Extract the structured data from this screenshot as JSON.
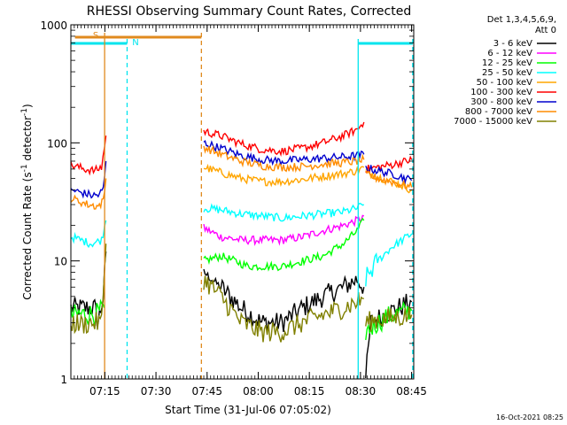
{
  "chart_data": {
    "type": "line",
    "title": "RHESSI Observing Summary Count Rates, Corrected",
    "xlabel": "Start Time (31-Jul-06 07:05:02)",
    "ylabel_main": "Corrected Count Rate (s",
    "ylabel_sup1": "-1",
    "ylabel_mid": " detector",
    "ylabel_sup2": "-1",
    "ylabel_end": ")",
    "y_scale": "log",
    "ylim": [
      1,
      1000
    ],
    "xlim_minutes": [
      0,
      100.6
    ],
    "x_ticks": [
      {
        "label": "07:15",
        "min": 9.97
      },
      {
        "label": "07:30",
        "min": 24.97
      },
      {
        "label": "07:45",
        "min": 39.97
      },
      {
        "label": "08:00",
        "min": 54.97
      },
      {
        "label": "08:15",
        "min": 69.97
      },
      {
        "label": "08:30",
        "min": 84.97
      },
      {
        "label": "08:45",
        "min": 99.97
      }
    ],
    "y_ticks": [
      {
        "label": "1",
        "value": 1
      },
      {
        "label": "10",
        "value": 10
      },
      {
        "label": "100",
        "value": 100
      },
      {
        "label": "1000",
        "value": 1000
      }
    ],
    "legend_header": [
      "Det 1,3,4,5,6,9,",
      "Att 0"
    ],
    "series": [
      {
        "name": "3 - 6 keV",
        "color": "#000000",
        "segments": [
          [
            [
              0,
              4
            ],
            [
              7,
              4
            ],
            [
              8,
              3
            ],
            [
              9.5,
              5
            ],
            [
              10.3,
              12
            ]
          ],
          [
            [
              39,
              8
            ],
            [
              44,
              6
            ],
            [
              50,
              4
            ],
            [
              56,
              3
            ],
            [
              62,
              3
            ],
            [
              68,
              4
            ],
            [
              74,
              5
            ],
            [
              80,
              6
            ],
            [
              84,
              7
            ],
            [
              86,
              6
            ]
          ],
          [
            [
              86.5,
              1
            ],
            [
              88,
              3
            ],
            [
              92,
              3.5
            ],
            [
              96,
              4
            ],
            [
              100,
              4.5
            ]
          ]
        ]
      },
      {
        "name": "6 - 12 keV",
        "color": "#ff00ff",
        "segments": [
          [
            [
              39,
              19
            ],
            [
              44,
              16
            ],
            [
              50,
              15
            ],
            [
              56,
              15
            ],
            [
              62,
              15
            ],
            [
              68,
              16
            ],
            [
              74,
              18
            ],
            [
              80,
              20
            ],
            [
              84,
              22
            ],
            [
              86,
              24
            ]
          ]
        ]
      },
      {
        "name": "12 - 25 keV",
        "color": "#00ff00",
        "segments": [
          [
            [
              0,
              3.5
            ],
            [
              8,
              3.6
            ],
            [
              9.8,
              4
            ]
          ],
          [
            [
              39,
              10
            ],
            [
              44,
              11
            ],
            [
              48,
              10
            ],
            [
              52,
              9
            ],
            [
              56,
              9
            ],
            [
              62,
              9
            ],
            [
              68,
              10
            ],
            [
              74,
              11
            ],
            [
              80,
              14
            ],
            [
              84,
              18
            ],
            [
              86,
              22
            ]
          ],
          [
            [
              86.5,
              2.5
            ],
            [
              90,
              3
            ],
            [
              94,
              3.5
            ],
            [
              100,
              3.8
            ]
          ]
        ]
      },
      {
        "name": "25 - 50 keV",
        "color": "#00ffff",
        "segments": [
          [
            [
              0,
              16
            ],
            [
              6,
              14
            ],
            [
              9,
              15
            ],
            [
              10.3,
              22
            ]
          ],
          [
            [
              39,
              28
            ],
            [
              44,
              27
            ],
            [
              50,
              25
            ],
            [
              56,
              24
            ],
            [
              62,
              23
            ],
            [
              68,
              24
            ],
            [
              74,
              25
            ],
            [
              80,
              26
            ],
            [
              84,
              28
            ],
            [
              86,
              30
            ]
          ],
          [
            [
              86.5,
              7
            ],
            [
              90,
              10
            ],
            [
              94,
              13
            ],
            [
              100,
              17
            ]
          ]
        ]
      },
      {
        "name": "50 - 100 keV",
        "color": "#ffa500",
        "segments": [
          [
            [
              39,
              62
            ],
            [
              44,
              56
            ],
            [
              50,
              50
            ],
            [
              56,
              47
            ],
            [
              62,
              47
            ],
            [
              68,
              49
            ],
            [
              74,
              52
            ],
            [
              80,
              55
            ],
            [
              84,
              58
            ],
            [
              86,
              62
            ]
          ],
          [
            [
              86.5,
              58
            ],
            [
              90,
              52
            ],
            [
              96,
              45
            ],
            [
              100,
              40
            ]
          ]
        ]
      },
      {
        "name": "100 - 300 keV",
        "color": "#ff0000",
        "segments": [
          [
            [
              0,
              65
            ],
            [
              4,
              60
            ],
            [
              7,
              58
            ],
            [
              9,
              62
            ],
            [
              10.3,
              115
            ]
          ],
          [
            [
              39,
              125
            ],
            [
              44,
              115
            ],
            [
              50,
              98
            ],
            [
              56,
              88
            ],
            [
              62,
              85
            ],
            [
              68,
              90
            ],
            [
              74,
              100
            ],
            [
              80,
              115
            ],
            [
              84,
              130
            ],
            [
              86,
              150
            ]
          ],
          [
            [
              86.5,
              60
            ],
            [
              90,
              62
            ],
            [
              95,
              66
            ],
            [
              100,
              72
            ]
          ]
        ]
      },
      {
        "name": "300 - 800 keV",
        "color": "#0000cd",
        "segments": [
          [
            [
              0,
              40
            ],
            [
              6,
              36
            ],
            [
              8,
              36
            ],
            [
              9.5,
              40
            ],
            [
              10.3,
              70
            ]
          ],
          [
            [
              39,
              100
            ],
            [
              44,
              90
            ],
            [
              50,
              78
            ],
            [
              56,
              72
            ],
            [
              62,
              70
            ],
            [
              68,
              72
            ],
            [
              74,
              74
            ],
            [
              80,
              76
            ],
            [
              84,
              78
            ],
            [
              86,
              80
            ]
          ],
          [
            [
              86.5,
              62
            ],
            [
              90,
              58
            ],
            [
              95,
              54
            ],
            [
              100,
              48
            ]
          ]
        ]
      },
      {
        "name": "800 - 7000 keV",
        "color": "#ff8c00",
        "segments": [
          [
            [
              0,
              34
            ],
            [
              5,
              30
            ],
            [
              8,
              29
            ],
            [
              9.5,
              32
            ],
            [
              10.3,
              50
            ]
          ],
          [
            [
              39,
              92
            ],
            [
              44,
              80
            ],
            [
              50,
              70
            ],
            [
              56,
              64
            ],
            [
              62,
              62
            ],
            [
              68,
              63
            ],
            [
              74,
              66
            ],
            [
              80,
              68
            ],
            [
              84,
              70
            ],
            [
              86,
              72
            ]
          ],
          [
            [
              86.5,
              54
            ],
            [
              90,
              50
            ],
            [
              95,
              46
            ],
            [
              100,
              42
            ]
          ]
        ]
      },
      {
        "name": "7000 - 15000 keV",
        "color": "#808000",
        "segments": [
          [
            [
              0,
              3
            ],
            [
              3,
              2.9
            ],
            [
              7,
              3
            ],
            [
              9,
              3
            ],
            [
              10.3,
              14
            ]
          ],
          [
            [
              39,
              7
            ],
            [
              44,
              5
            ],
            [
              50,
              3
            ],
            [
              56,
              2.5
            ],
            [
              62,
              2.5
            ],
            [
              68,
              3
            ],
            [
              74,
              3.5
            ],
            [
              80,
              4
            ],
            [
              84,
              4.5
            ],
            [
              86,
              4.8
            ]
          ],
          [
            [
              86.5,
              3
            ],
            [
              90,
              3.2
            ],
            [
              95,
              3.3
            ],
            [
              100,
              3.5
            ]
          ]
        ]
      }
    ],
    "annotations": {
      "s_label": "S",
      "s_bar": [
        1.2,
        38.3
      ],
      "n_label": "N",
      "n_bars": [
        [
          0,
          16.5
        ],
        [
          84.3,
          100.3
        ]
      ],
      "s_lines": [
        {
          "min": 9.9,
          "style": "solid"
        },
        {
          "min": 38.3,
          "style": "dashed"
        }
      ],
      "n_lines": [
        {
          "min": 16.5,
          "style": "dashed"
        },
        {
          "min": 84.3,
          "style": "solid"
        },
        {
          "min": 100.3,
          "style": "dashed"
        }
      ]
    },
    "grid": false,
    "legend_position": "right"
  },
  "timestamp": "16-Oct-2021 08:25",
  "colors": {
    "orange_bar": "#e08a1e",
    "cyan_bar": "#00e5ee"
  }
}
